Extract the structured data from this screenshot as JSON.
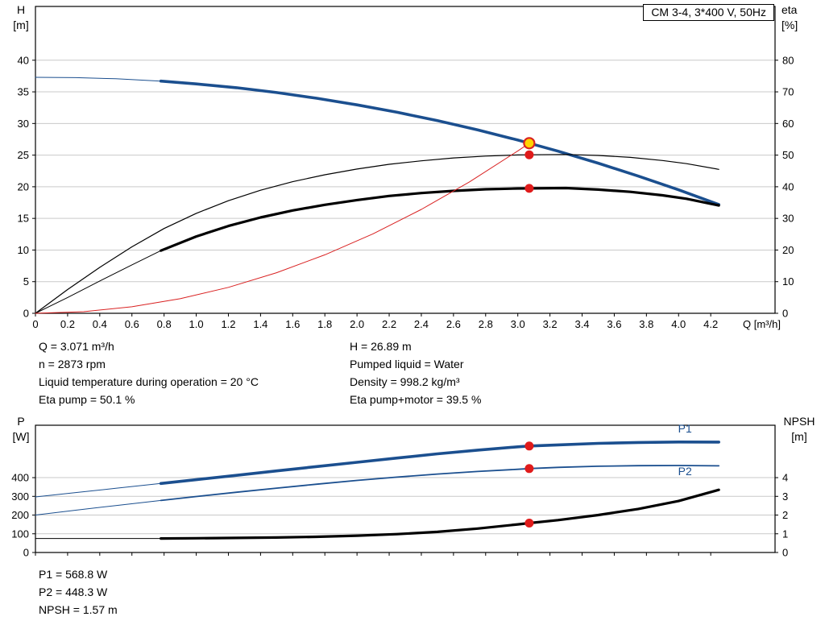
{
  "info_top_left": [
    "Q = 3.071 m³/h",
    "n = 2873 rpm",
    "Liquid temperature during operation = 20 °C",
    "Eta pump = 50.1 %"
  ],
  "info_top_right": [
    "H = 26.89 m",
    "Pumped liquid = Water",
    "Density = 998.2 kg/m³",
    "Eta pump+motor = 39.5 %"
  ],
  "info_bottom": [
    "P1 = 568.8 W",
    "P2 = 448.3 W",
    "NPSH = 1.57 m"
  ],
  "colors": {
    "curve_blue": "#1b4f8f",
    "curve_black": "#000000",
    "curve_red": "#d92121",
    "marker_red": "#e01b1b",
    "marker_yellow": "#ffd400",
    "grid": "#c9c9c9"
  },
  "chart_data": [
    {
      "name": "hq-eta-chart",
      "type": "line",
      "title": "CM 3-4, 3*400 V, 50Hz",
      "x": {
        "label": "Q [m³/h]",
        "min": 0,
        "max": 4.6,
        "ticks": [
          0,
          0.2,
          0.4,
          0.6,
          0.8,
          1.0,
          1.2,
          1.4,
          1.6,
          1.8,
          2.0,
          2.2,
          2.4,
          2.6,
          2.8,
          3.0,
          3.2,
          3.4,
          3.6,
          3.8,
          4.0,
          4.2
        ]
      },
      "y_left": {
        "label": "H",
        "unit": "[m]",
        "min": 0,
        "max": 48.5,
        "ticks": [
          0,
          5,
          10,
          15,
          20,
          25,
          30,
          35,
          40
        ]
      },
      "y_right": {
        "label": "eta",
        "unit": "[%]",
        "min": 0,
        "max": 97,
        "ticks": [
          0,
          10,
          20,
          30,
          40,
          50,
          60,
          70,
          80
        ]
      },
      "grid": "horizontal",
      "series": [
        {
          "name": "H-curve-lead-in",
          "axis": "left",
          "color": "#1b4f8f",
          "width": 1,
          "points": [
            [
              0,
              37.3
            ],
            [
              0.25,
              37.25
            ],
            [
              0.5,
              37.07
            ],
            [
              0.78,
              36.7
            ]
          ]
        },
        {
          "name": "H-curve",
          "axis": "left",
          "color": "#1b4f8f",
          "width": 3.6,
          "points": [
            [
              0.78,
              36.7
            ],
            [
              1,
              36.26
            ],
            [
              1.25,
              35.65
            ],
            [
              1.5,
              34.89
            ],
            [
              1.75,
              33.99
            ],
            [
              2,
              32.95
            ],
            [
              2.25,
              31.77
            ],
            [
              2.5,
              30.45
            ],
            [
              2.75,
              28.98
            ],
            [
              3,
              27.38
            ],
            [
              3.071,
              26.89
            ],
            [
              3.25,
              25.63
            ],
            [
              3.5,
              23.73
            ],
            [
              3.75,
              21.68
            ],
            [
              4,
              19.52
            ],
            [
              4.25,
              17.19
            ]
          ]
        },
        {
          "name": "eta-pump-curve",
          "axis": "right",
          "color": "#000000",
          "width": 1.2,
          "points": [
            [
              0,
              0
            ],
            [
              0.2,
              7.5
            ],
            [
              0.4,
              14.5
            ],
            [
              0.6,
              21
            ],
            [
              0.8,
              26.8
            ],
            [
              1,
              31.6
            ],
            [
              1.2,
              35.6
            ],
            [
              1.4,
              38.9
            ],
            [
              1.6,
              41.6
            ],
            [
              1.8,
              43.8
            ],
            [
              2,
              45.6
            ],
            [
              2.2,
              47.1
            ],
            [
              2.4,
              48.2
            ],
            [
              2.6,
              49.1
            ],
            [
              2.8,
              49.7
            ],
            [
              3,
              50.05
            ],
            [
              3.071,
              50.1
            ],
            [
              3.3,
              50.2
            ],
            [
              3.5,
              49.9
            ],
            [
              3.7,
              49.3
            ],
            [
              3.9,
              48.3
            ],
            [
              4.05,
              47.3
            ],
            [
              4.25,
              45.5
            ]
          ]
        },
        {
          "name": "eta-pump-motor-lead-in",
          "axis": "right",
          "color": "#000000",
          "width": 1,
          "points": [
            [
              0,
              0
            ],
            [
              0.2,
              5
            ],
            [
              0.4,
              10.2
            ],
            [
              0.6,
              15.3
            ],
            [
              0.78,
              19.8
            ]
          ]
        },
        {
          "name": "eta-pump-motor-curve",
          "axis": "right",
          "color": "#000000",
          "width": 3.2,
          "points": [
            [
              0.78,
              19.8
            ],
            [
              1,
              24.3
            ],
            [
              1.2,
              27.6
            ],
            [
              1.4,
              30.3
            ],
            [
              1.6,
              32.5
            ],
            [
              1.8,
              34.3
            ],
            [
              2,
              35.8
            ],
            [
              2.2,
              37.1
            ],
            [
              2.4,
              38
            ],
            [
              2.6,
              38.7
            ],
            [
              2.8,
              39.2
            ],
            [
              3,
              39.45
            ],
            [
              3.071,
              39.5
            ],
            [
              3.3,
              39.6
            ],
            [
              3.5,
              39.1
            ],
            [
              3.7,
              38.4
            ],
            [
              3.9,
              37.3
            ],
            [
              4.05,
              36.2
            ],
            [
              4.25,
              34.1
            ]
          ]
        },
        {
          "name": "system-curve",
          "axis": "left",
          "color": "#d92121",
          "width": 1,
          "points": [
            [
              0,
              0
            ],
            [
              0.3,
              0.26
            ],
            [
              0.6,
              1.03
            ],
            [
              0.9,
              2.31
            ],
            [
              1.2,
              4.1
            ],
            [
              1.5,
              6.41
            ],
            [
              1.8,
              9.24
            ],
            [
              2.1,
              12.57
            ],
            [
              2.4,
              16.42
            ],
            [
              2.7,
              20.78
            ],
            [
              3,
              25.66
            ],
            [
              3.071,
              26.89
            ]
          ]
        }
      ],
      "markers": [
        {
          "name": "eta-pump-operating-point",
          "axis": "right",
          "x": 3.071,
          "y": 50.1,
          "shape": "dot",
          "fill": "#e01b1b",
          "r": 5.5
        },
        {
          "name": "eta-pump-motor-operating-point",
          "axis": "right",
          "x": 3.071,
          "y": 39.5,
          "shape": "dot",
          "fill": "#e01b1b",
          "r": 5.5
        },
        {
          "name": "duty-point",
          "axis": "left",
          "x": 3.071,
          "y": 26.89,
          "shape": "ring",
          "fill": "#ffd400",
          "stroke": "#d92121",
          "stroke_width": 2.2,
          "r": 6.5
        }
      ],
      "annotations": []
    },
    {
      "name": "power-npsh-chart",
      "type": "line",
      "title": "",
      "x": {
        "label": "",
        "min": 0,
        "max": 4.6,
        "ticks": [
          0,
          0.2,
          0.4,
          0.6,
          0.8,
          1.0,
          1.2,
          1.4,
          1.6,
          1.8,
          2.0,
          2.2,
          2.4,
          2.6,
          2.8,
          3.0,
          3.2,
          3.4,
          3.6,
          3.8,
          4.0,
          4.2
        ]
      },
      "y_left": {
        "label": "P",
        "unit": "[W]",
        "min": 0,
        "max": 680,
        "ticks": [
          0,
          100,
          200,
          300,
          400
        ]
      },
      "y_right": {
        "label": "NPSH",
        "unit": "[m]",
        "min": 0,
        "max": 6.8,
        "ticks": [
          0,
          1,
          2,
          3,
          4
        ]
      },
      "grid": "horizontal",
      "series": [
        {
          "name": "P1-lead-in",
          "axis": "left",
          "color": "#1b4f8f",
          "width": 1,
          "points": [
            [
              0,
              297
            ],
            [
              0.25,
              320
            ],
            [
              0.5,
              343
            ],
            [
              0.78,
              369
            ]
          ]
        },
        {
          "name": "P1-curve",
          "axis": "left",
          "color": "#1b4f8f",
          "width": 3.6,
          "points": [
            [
              0.78,
              369
            ],
            [
              1,
              389
            ],
            [
              1.25,
              412.5
            ],
            [
              1.5,
              436
            ],
            [
              1.75,
              459
            ],
            [
              2,
              482
            ],
            [
              2.25,
              505
            ],
            [
              2.5,
              527
            ],
            [
              2.75,
              547
            ],
            [
              3,
              564.5
            ],
            [
              3.071,
              568.8
            ],
            [
              3.25,
              575
            ],
            [
              3.5,
              583
            ],
            [
              3.75,
              588
            ],
            [
              4,
              590.5
            ],
            [
              4.25,
              590
            ]
          ]
        },
        {
          "name": "P2-lead-in",
          "axis": "left",
          "color": "#1b4f8f",
          "width": 1,
          "points": [
            [
              0,
              200
            ],
            [
              0.25,
              226
            ],
            [
              0.5,
              251
            ],
            [
              0.78,
              278
            ]
          ]
        },
        {
          "name": "P2-curve",
          "axis": "left",
          "color": "#1b4f8f",
          "width": 1.8,
          "points": [
            [
              0.78,
              278
            ],
            [
              1,
              299
            ],
            [
              1.25,
              322
            ],
            [
              1.5,
              344
            ],
            [
              1.75,
              365
            ],
            [
              2,
              385
            ],
            [
              2.25,
              403
            ],
            [
              2.5,
              419
            ],
            [
              2.75,
              433
            ],
            [
              3,
              444.5
            ],
            [
              3.071,
              448.3
            ],
            [
              3.25,
              455
            ],
            [
              3.5,
              461
            ],
            [
              3.75,
              464
            ],
            [
              4,
              465
            ],
            [
              4.25,
              463
            ]
          ]
        },
        {
          "name": "NPSH-lead-in",
          "axis": "right",
          "color": "#000000",
          "width": 1,
          "points": [
            [
              0,
              0.75
            ],
            [
              0.4,
              0.75
            ],
            [
              0.78,
              0.75
            ]
          ]
        },
        {
          "name": "NPSH-curve",
          "axis": "right",
          "color": "#000000",
          "width": 3.2,
          "points": [
            [
              0.78,
              0.75
            ],
            [
              1,
              0.76
            ],
            [
              1.25,
              0.78
            ],
            [
              1.5,
              0.8
            ],
            [
              1.75,
              0.84
            ],
            [
              2,
              0.9
            ],
            [
              2.25,
              0.98
            ],
            [
              2.5,
              1.1
            ],
            [
              2.75,
              1.28
            ],
            [
              3,
              1.5
            ],
            [
              3.071,
              1.57
            ],
            [
              3.25,
              1.73
            ],
            [
              3.5,
              2
            ],
            [
              3.75,
              2.33
            ],
            [
              4,
              2.75
            ],
            [
              4.25,
              3.35
            ]
          ]
        }
      ],
      "markers": [
        {
          "name": "P1-operating-point",
          "axis": "left",
          "x": 3.071,
          "y": 568.8,
          "shape": "dot",
          "fill": "#e01b1b",
          "r": 5.5
        },
        {
          "name": "P2-operating-point",
          "axis": "left",
          "x": 3.071,
          "y": 448.3,
          "shape": "dot",
          "fill": "#e01b1b",
          "r": 5.5
        },
        {
          "name": "NPSH-operating-point",
          "axis": "right",
          "x": 3.071,
          "y": 1.57,
          "shape": "dot",
          "fill": "#e01b1b",
          "r": 5.5
        }
      ],
      "annotations": [
        {
          "text": "P1",
          "axis": "left",
          "x": 4.04,
          "y": 641,
          "color": "#1b4f8f"
        },
        {
          "text": "P2",
          "axis": "left",
          "x": 4.04,
          "y": 413,
          "color": "#1b4f8f"
        }
      ]
    }
  ]
}
